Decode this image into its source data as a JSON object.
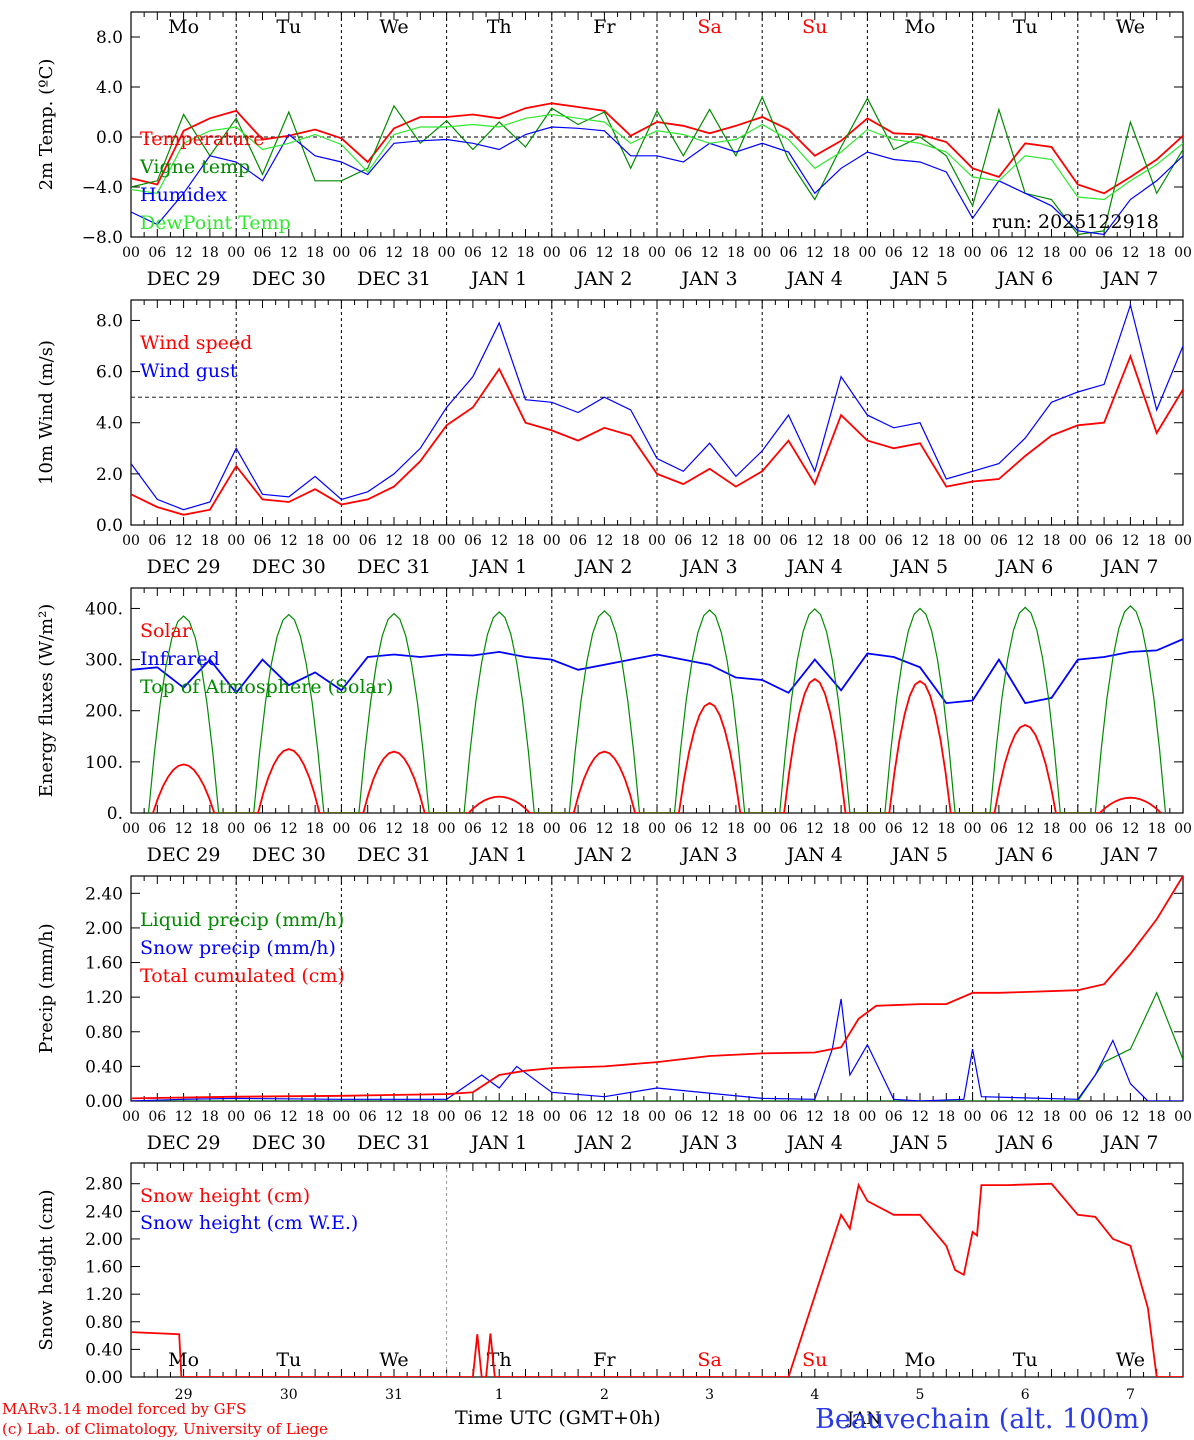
{
  "run_label": "run: 2025122918",
  "footer": {
    "model_line": "MARv3.14 model forced by GFS",
    "lab_line": "(c) Lab. of Climatology, University of Liege",
    "x_axis_title": "Time UTC (GMT+0h)",
    "month_label": "JAN",
    "station": "Beauvechain (alt. 100m)"
  },
  "colors": {
    "red": "#ff0000",
    "green": "#008a00",
    "blue": "#0000ff",
    "lightgreen": "#2ee82e",
    "weekend": "#ff0000",
    "station": "#2a3ae6"
  },
  "days": [
    {
      "short": "Mo",
      "date": "DEC 29",
      "num": "29",
      "weekend": false
    },
    {
      "short": "Tu",
      "date": "DEC 30",
      "num": "30",
      "weekend": false
    },
    {
      "short": "We",
      "date": "DEC 31",
      "num": "31",
      "weekend": false
    },
    {
      "short": "Th",
      "date": "JAN  1",
      "num": "1",
      "weekend": false
    },
    {
      "short": "Fr",
      "date": "JAN  2",
      "num": "2",
      "weekend": false
    },
    {
      "short": "Sa",
      "date": "JAN  3",
      "num": "3",
      "weekend": true
    },
    {
      "short": "Su",
      "date": "JAN  4",
      "num": "4",
      "weekend": true
    },
    {
      "short": "Mo",
      "date": "JAN  5",
      "num": "5",
      "weekend": false
    },
    {
      "short": "Tu",
      "date": "JAN  6",
      "num": "6",
      "weekend": false
    },
    {
      "short": "We",
      "date": "JAN  7",
      "num": "7",
      "weekend": false
    }
  ],
  "hour_ticks": [
    "00",
    "06",
    "12",
    "18"
  ],
  "last_hour_tick": "00",
  "chart_data": [
    {
      "id": "temp",
      "type": "line",
      "ylabel": "2m Temp. (ºC)",
      "ylim": [
        -8,
        10
      ],
      "yticks": [
        -8,
        -4,
        0,
        4,
        8
      ],
      "ytick_labels": [
        "−8.0",
        "−4.0",
        "0.0",
        "4.0",
        "8.0"
      ],
      "ref_line": 0,
      "x_unit": "hours since DEC 29 00 UTC",
      "series": [
        {
          "name": "Temperature",
          "color": "red",
          "x": [
            0,
            6,
            12,
            18,
            24,
            30,
            36,
            42,
            48,
            54,
            60,
            66,
            72,
            78,
            84,
            90,
            96,
            102,
            108,
            114,
            120,
            126,
            132,
            138,
            144,
            150,
            156,
            162,
            168,
            174,
            180,
            186,
            192,
            198,
            204,
            210,
            216,
            222,
            228,
            234,
            240
          ],
          "y": [
            -3.3,
            -3.8,
            0.5,
            1.5,
            2.1,
            -0.2,
            0.1,
            0.6,
            -0.1,
            -2.0,
            0.7,
            1.6,
            1.6,
            1.8,
            1.5,
            2.3,
            2.7,
            2.4,
            2.1,
            0.1,
            1.2,
            0.9,
            0.3,
            0.9,
            1.6,
            0.6,
            -1.5,
            -0.3,
            1.5,
            0.3,
            0.2,
            -0.4,
            -2.5,
            -3.2,
            -0.5,
            -0.8,
            -3.8,
            -4.5,
            -3.2,
            -1.8,
            0.1
          ]
        },
        {
          "name": "Vigne temp",
          "color": "green",
          "x": [
            0,
            6,
            12,
            18,
            24,
            30,
            36,
            42,
            48,
            54,
            60,
            66,
            72,
            78,
            84,
            90,
            96,
            102,
            108,
            114,
            120,
            126,
            132,
            138,
            144,
            150,
            156,
            162,
            168,
            174,
            180,
            186,
            192,
            198,
            204,
            210,
            216,
            222,
            228,
            234,
            240
          ],
          "y": [
            -4.0,
            -3.5,
            1.8,
            -1.5,
            1.5,
            -3.0,
            2.0,
            -3.5,
            -3.5,
            -2.5,
            2.5,
            -0.5,
            1.3,
            -1.0,
            1.2,
            -0.8,
            2.3,
            1.0,
            2.0,
            -2.5,
            2.1,
            -1.5,
            2.2,
            -1.5,
            3.2,
            -1.8,
            -5.0,
            -0.8,
            3.1,
            -1.0,
            0.0,
            -1.5,
            -5.5,
            2.2,
            -4.5,
            -5.0,
            -7.8,
            -7.5,
            1.2,
            -4.5,
            -1.0
          ]
        },
        {
          "name": "Humidex",
          "color": "blue",
          "x": [
            0,
            6,
            12,
            18,
            24,
            30,
            36,
            42,
            48,
            54,
            60,
            66,
            72,
            78,
            84,
            90,
            96,
            102,
            108,
            114,
            120,
            126,
            132,
            138,
            144,
            150,
            156,
            162,
            168,
            174,
            180,
            186,
            192,
            198,
            204,
            210,
            216,
            222,
            228,
            234,
            240
          ],
          "y": [
            -6.0,
            -7.0,
            -4.5,
            -1.5,
            -2.0,
            -3.5,
            0.2,
            -1.5,
            -2.0,
            -3.0,
            -0.5,
            -0.3,
            -0.2,
            -0.5,
            -1.0,
            0.2,
            0.8,
            0.7,
            0.5,
            -1.5,
            -1.5,
            -2.0,
            -0.5,
            -1.2,
            -0.5,
            -1.2,
            -4.5,
            -2.5,
            -1.2,
            -1.8,
            -2.0,
            -2.8,
            -6.5,
            -3.5,
            -4.5,
            -5.5,
            -7.5,
            -7.8,
            -5.0,
            -3.5,
            -1.5
          ]
        },
        {
          "name": "DewPoint Temp",
          "color": "lightgreen",
          "x": [
            0,
            6,
            12,
            18,
            24,
            30,
            36,
            42,
            48,
            54,
            60,
            66,
            72,
            78,
            84,
            90,
            96,
            102,
            108,
            114,
            120,
            126,
            132,
            138,
            144,
            150,
            156,
            162,
            168,
            174,
            180,
            186,
            192,
            198,
            204,
            210,
            216,
            222,
            228,
            234,
            240
          ],
          "y": [
            -4.2,
            -4.5,
            -0.5,
            0.5,
            0.8,
            -1.0,
            -0.5,
            0.2,
            -0.6,
            -2.8,
            0.2,
            0.8,
            0.8,
            1.0,
            0.8,
            1.5,
            1.8,
            1.5,
            1.2,
            -0.5,
            0.5,
            0.2,
            -0.5,
            -0.2,
            1.0,
            -0.2,
            -2.5,
            -1.2,
            0.6,
            -0.2,
            -0.5,
            -1.2,
            -3.2,
            -3.5,
            -1.5,
            -1.8,
            -4.8,
            -5.0,
            -3.5,
            -2.2,
            -0.5
          ]
        }
      ]
    },
    {
      "id": "wind",
      "type": "line",
      "ylabel": "10m Wind (m/s)",
      "ylim": [
        0,
        8.8
      ],
      "yticks": [
        0,
        2,
        4,
        6,
        8
      ],
      "ytick_labels": [
        "0.0",
        "2.0",
        "4.0",
        "6.0",
        "8.0"
      ],
      "ref_line": 5,
      "series": [
        {
          "name": "Wind speed",
          "color": "red",
          "x": [
            0,
            6,
            12,
            18,
            24,
            30,
            36,
            42,
            48,
            54,
            60,
            66,
            72,
            78,
            84,
            90,
            96,
            102,
            108,
            114,
            120,
            126,
            132,
            138,
            144,
            150,
            156,
            162,
            168,
            174,
            180,
            186,
            192,
            198,
            204,
            210,
            216,
            222,
            228,
            234,
            240
          ],
          "y": [
            1.2,
            0.7,
            0.4,
            0.6,
            2.3,
            1.0,
            0.9,
            1.4,
            0.8,
            1.0,
            1.5,
            2.5,
            3.9,
            4.6,
            6.1,
            4.0,
            3.7,
            3.3,
            3.8,
            3.5,
            2.0,
            1.6,
            2.2,
            1.5,
            2.1,
            3.3,
            1.6,
            4.3,
            3.3,
            3.0,
            3.2,
            1.5,
            1.7,
            1.8,
            2.7,
            3.5,
            3.9,
            4.0,
            6.6,
            3.6,
            5.3
          ]
        },
        {
          "name": "Wind gust",
          "color": "blue",
          "x": [
            0,
            6,
            12,
            18,
            24,
            30,
            36,
            42,
            48,
            54,
            60,
            66,
            72,
            78,
            84,
            90,
            96,
            102,
            108,
            114,
            120,
            126,
            132,
            138,
            144,
            150,
            156,
            162,
            168,
            174,
            180,
            186,
            192,
            198,
            204,
            210,
            216,
            222,
            228,
            234,
            240
          ],
          "y": [
            2.4,
            1.0,
            0.6,
            0.9,
            3.0,
            1.2,
            1.1,
            1.9,
            1.0,
            1.3,
            2.0,
            3.0,
            4.6,
            5.8,
            7.9,
            4.9,
            4.8,
            4.4,
            5.0,
            4.5,
            2.6,
            2.1,
            3.2,
            1.9,
            2.9,
            4.3,
            2.1,
            5.8,
            4.3,
            3.8,
            4.0,
            1.8,
            2.1,
            2.4,
            3.4,
            4.8,
            5.2,
            5.5,
            8.6,
            4.5,
            7.0
          ]
        }
      ]
    },
    {
      "id": "energy",
      "type": "line",
      "ylabel": "Energy fluxes (W/m²)",
      "ylim": [
        0,
        440
      ],
      "yticks": [
        0,
        100,
        200,
        300,
        400
      ],
      "ytick_labels": [
        "0.",
        "100.",
        "200.",
        "300.",
        "400."
      ],
      "ref_line": null,
      "solar_peaks": [
        95,
        125,
        120,
        32,
        120,
        215,
        262,
        258,
        172,
        30
      ],
      "toa_peaks": [
        385,
        388,
        390,
        393,
        395,
        397,
        399,
        400,
        402,
        405
      ],
      "series": [
        {
          "name": "Solar",
          "color": "red"
        },
        {
          "name": "Infrared",
          "color": "blue",
          "x": [
            0,
            6,
            12,
            18,
            24,
            30,
            36,
            42,
            48,
            54,
            60,
            66,
            72,
            78,
            84,
            90,
            96,
            102,
            108,
            114,
            120,
            126,
            132,
            138,
            144,
            150,
            156,
            162,
            168,
            174,
            180,
            186,
            192,
            198,
            204,
            210,
            216,
            222,
            228,
            234,
            240
          ],
          "y": [
            280,
            285,
            245,
            300,
            235,
            300,
            250,
            275,
            240,
            305,
            310,
            305,
            310,
            308,
            315,
            305,
            300,
            280,
            290,
            300,
            310,
            300,
            290,
            265,
            260,
            235,
            300,
            240,
            312,
            305,
            285,
            215,
            220,
            300,
            215,
            225,
            300,
            305,
            315,
            318,
            340
          ]
        },
        {
          "name": "Top of Atmosphere (Solar)",
          "color": "green"
        }
      ]
    },
    {
      "id": "precip",
      "type": "line",
      "ylabel": "Precip (mm/h)",
      "ylim": [
        0,
        2.6
      ],
      "yticks": [
        0,
        0.4,
        0.8,
        1.2,
        1.6,
        2.0,
        2.4
      ],
      "ytick_labels": [
        "0.00",
        "0.40",
        "0.80",
        "1.20",
        "1.60",
        "2.00",
        "2.40"
      ],
      "ref_line": null,
      "series": [
        {
          "name": "Liquid precip (mm/h)",
          "color": "green",
          "x": [
            0,
            24,
            48,
            72,
            96,
            120,
            144,
            168,
            192,
            216,
            222,
            228,
            234,
            240
          ],
          "y": [
            0,
            0,
            0,
            0,
            0,
            0,
            0,
            0,
            0,
            0,
            0.45,
            0.6,
            1.25,
            0.48
          ]
        },
        {
          "name": "Snow precip (mm/h)",
          "color": "blue",
          "x": [
            0,
            12,
            24,
            48,
            72,
            80,
            84,
            88,
            96,
            108,
            120,
            144,
            156,
            160,
            162,
            164,
            168,
            174,
            180,
            190,
            192,
            194,
            216,
            220,
            224,
            228,
            232,
            240
          ],
          "y": [
            0,
            0.02,
            0.03,
            0.02,
            0.02,
            0.3,
            0.15,
            0.4,
            0.1,
            0.05,
            0.15,
            0.03,
            0.02,
            0.6,
            1.18,
            0.3,
            0.65,
            0.02,
            0,
            0.02,
            0.6,
            0.05,
            0.02,
            0.3,
            0.7,
            0.2,
            0,
            0
          ]
        },
        {
          "name": "Total cumulated (cm)",
          "color": "red",
          "x": [
            0,
            24,
            48,
            72,
            78,
            84,
            90,
            96,
            108,
            120,
            132,
            144,
            156,
            162,
            166,
            170,
            180,
            186,
            192,
            198,
            204,
            216,
            222,
            228,
            234,
            240
          ],
          "y": [
            0.03,
            0.05,
            0.06,
            0.08,
            0.1,
            0.3,
            0.35,
            0.38,
            0.4,
            0.45,
            0.52,
            0.55,
            0.56,
            0.62,
            0.95,
            1.1,
            1.12,
            1.12,
            1.25,
            1.25,
            1.26,
            1.28,
            1.35,
            1.7,
            2.1,
            2.6
          ]
        }
      ]
    },
    {
      "id": "snow",
      "type": "line",
      "ylabel": "Snow height (cm)",
      "ylim": [
        0,
        3.1
      ],
      "yticks": [
        0,
        0.4,
        0.8,
        1.2,
        1.6,
        2.0,
        2.4,
        2.8
      ],
      "ytick_labels": [
        "0.00",
        "0.40",
        "0.80",
        "1.20",
        "1.60",
        "2.00",
        "2.40",
        "2.80"
      ],
      "ref_line": null,
      "series": [
        {
          "name": "Snow height (cm)",
          "color": "red",
          "x": [
            0,
            11,
            11.5,
            78,
            79,
            80,
            81,
            82,
            83,
            84,
            85,
            86,
            150,
            162,
            164,
            166,
            168,
            174,
            180,
            186,
            188,
            190,
            192,
            193,
            194,
            196,
            200,
            210,
            216,
            220,
            224,
            228,
            232,
            234,
            240
          ],
          "y": [
            0.65,
            0.62,
            0,
            0,
            0.62,
            0,
            0,
            0.63,
            0,
            0,
            0,
            0,
            0,
            2.35,
            2.15,
            2.78,
            2.55,
            2.35,
            2.35,
            1.9,
            1.55,
            1.48,
            2.1,
            2.05,
            2.78,
            2.78,
            2.78,
            2.8,
            2.35,
            2.32,
            2.0,
            1.9,
            1.0,
            0,
            0
          ]
        },
        {
          "name": "Snow height (cm W.E.)",
          "color": "blue"
        }
      ]
    }
  ]
}
